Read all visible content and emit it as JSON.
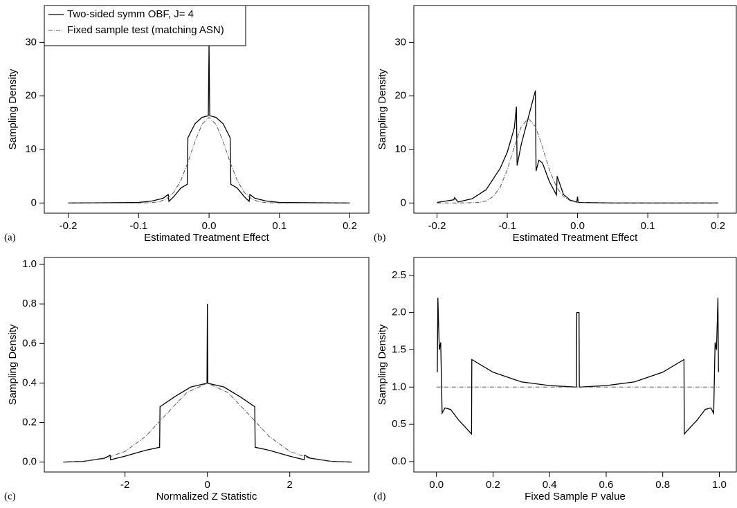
{
  "chart_data": [
    {
      "type": "line",
      "panel_label": "(a)",
      "x_label": "Estimated Treatment Effect",
      "y_label": "Sampling Density",
      "xlim": [
        -0.234,
        0.227
      ],
      "ylim": [
        -1.9,
        36.9
      ],
      "xticks": [
        -0.2,
        -0.1,
        {
          "value": 0,
          "label": "0.0"
        },
        0.1,
        0.2
      ],
      "yticks": [
        0,
        10,
        20,
        30
      ],
      "legend": "upper left",
      "series": [
        {
          "name": "Two-sided symm OBF, J= 4",
          "color": "#000000",
          "line_style": "solid",
          "x": [
            -0.2,
            -0.1,
            -0.08,
            -0.065,
            -0.058,
            -0.057,
            -0.05,
            -0.04,
            -0.031,
            -0.03,
            -0.02,
            -0.01,
            -0.001,
            0,
            0.001,
            0.01,
            0.02,
            0.03,
            0.031,
            0.04,
            0.05,
            0.057,
            0.058,
            0.065,
            0.08,
            0.1,
            0.2
          ],
          "values": [
            0,
            0.1,
            0.4,
            0.9,
            1.6,
            0.3,
            1.2,
            2.8,
            3.5,
            12.2,
            14.8,
            16,
            16.3,
            29.5,
            16.3,
            16,
            14.8,
            12.2,
            3.5,
            2.8,
            1.2,
            0.3,
            1.6,
            0.9,
            0.4,
            0.1,
            0
          ]
        },
        {
          "name": "Fixed sample test (matching ASN)",
          "color": "#555555",
          "line_style": "dashdot",
          "x": [
            -0.2,
            -0.1,
            -0.08,
            -0.07,
            -0.06,
            -0.05,
            -0.04,
            -0.03,
            -0.02,
            -0.01,
            0,
            0.01,
            0.02,
            0.03,
            0.04,
            0.05,
            0.06,
            0.07,
            0.08,
            0.1,
            0.2
          ],
          "values": [
            0,
            0,
            0.07,
            0.27,
            0.8,
            2.0,
            4.2,
            7.6,
            11.5,
            14.7,
            16,
            14.7,
            11.5,
            7.6,
            4.2,
            2.0,
            0.8,
            0.27,
            0.07,
            0,
            0
          ]
        }
      ]
    },
    {
      "type": "line",
      "panel_label": "(b)",
      "x_label": "Estimated Treatment Effect",
      "y_label": "Sampling Density",
      "xlim": [
        -0.233,
        0.226
      ],
      "ylim": [
        -1.9,
        36.9
      ],
      "xticks": [
        -0.2,
        -0.1,
        {
          "value": 0,
          "label": "0.0"
        },
        0.1,
        0.2
      ],
      "yticks": [
        0,
        10,
        20,
        30
      ],
      "series": [
        {
          "color": "#000000",
          "line_style": "solid",
          "x": [
            -0.2,
            -0.176,
            -0.175,
            -0.17,
            -0.15,
            -0.13,
            -0.11,
            -0.1,
            -0.09,
            -0.087,
            -0.086,
            -0.08,
            -0.07,
            -0.06,
            -0.059,
            -0.055,
            -0.05,
            -0.04,
            -0.03,
            -0.029,
            -0.02,
            -0.01,
            -0.001,
            0,
            0.001,
            0.05,
            0.2
          ],
          "values": [
            0.1,
            0.6,
            1.0,
            0.2,
            0.8,
            2.5,
            6.5,
            9.5,
            14,
            18,
            7,
            11,
            16,
            21,
            6,
            8,
            7.5,
            4,
            1.5,
            5,
            1.6,
            0.5,
            0.2,
            1.2,
            0.1,
            0,
            0
          ]
        },
        {
          "color": "#555555",
          "line_style": "dashdot",
          "x": [
            -0.2,
            -0.16,
            -0.14,
            -0.13,
            -0.12,
            -0.11,
            -0.1,
            -0.09,
            -0.08,
            -0.07,
            -0.06,
            -0.05,
            -0.04,
            -0.03,
            -0.02,
            -0.01,
            0,
            0.02,
            0.2
          ],
          "values": [
            0,
            0.02,
            0.1,
            0.4,
            1.2,
            3.0,
            6.2,
            10.5,
            14.3,
            15.8,
            14.3,
            10.5,
            6.2,
            3.0,
            1.2,
            0.4,
            0.1,
            0,
            0
          ]
        }
      ]
    },
    {
      "type": "line",
      "panel_label": "(c)",
      "x_label": "Normalized Z Statistic",
      "y_label": "Sampling Density",
      "xlim": [
        -3.96,
        3.92
      ],
      "ylim": [
        -0.05,
        1.035
      ],
      "xticks": [
        -2,
        0,
        2
      ],
      "yticks": [
        {
          "value": 0,
          "label": "0.0"
        },
        0.2,
        0.4,
        0.6,
        0.8,
        {
          "value": 1,
          "label": "1.0"
        }
      ],
      "series": [
        {
          "color": "#000000",
          "line_style": "solid",
          "x": [
            -3.5,
            -3,
            -2.5,
            -2.36,
            -2.35,
            -2,
            -1.5,
            -1.16,
            -1.15,
            -0.8,
            -0.4,
            -0.01,
            0,
            0.01,
            0.4,
            0.8,
            1.15,
            1.16,
            1.5,
            2,
            2.35,
            2.36,
            2.5,
            3,
            3.5
          ],
          "values": [
            0,
            0.004,
            0.02,
            0.035,
            0.012,
            0.03,
            0.06,
            0.075,
            0.28,
            0.33,
            0.38,
            0.399,
            0.8,
            0.399,
            0.38,
            0.33,
            0.28,
            0.075,
            0.06,
            0.03,
            0.012,
            0.035,
            0.02,
            0.004,
            0
          ]
        },
        {
          "color": "#555555",
          "line_style": "dashdot",
          "x": [
            -3.5,
            -3,
            -2.5,
            -2,
            -1.5,
            -1,
            -0.5,
            0,
            0.5,
            1,
            1.5,
            2,
            2.5,
            3,
            3.5
          ],
          "values": [
            0.0009,
            0.0044,
            0.0175,
            0.054,
            0.13,
            0.242,
            0.352,
            0.399,
            0.352,
            0.242,
            0.13,
            0.054,
            0.0175,
            0.0044,
            0.0009
          ]
        }
      ]
    },
    {
      "type": "line",
      "panel_label": "(d)",
      "x_label": "Fixed Sample P value",
      "y_label": "Sampling Density",
      "xlim": [
        -0.08,
        1.06
      ],
      "ylim": [
        -0.14,
        2.74
      ],
      "xticks": [
        {
          "value": 0,
          "label": "0.0"
        },
        0.2,
        0.4,
        0.6,
        0.8,
        {
          "value": 1,
          "label": "1.0"
        }
      ],
      "yticks": [
        {
          "value": 0,
          "label": "0.0"
        },
        0.5,
        {
          "value": 1,
          "label": "1.0"
        },
        1.5,
        {
          "value": 2,
          "label": "2.0"
        },
        2.5
      ],
      "series": [
        {
          "color": "#000000",
          "line_style": "solid",
          "x": [
            0.003,
            0.005,
            0.01,
            0.015,
            0.02,
            0.03,
            0.05,
            0.08,
            0.1,
            0.124,
            0.125,
            0.2,
            0.3,
            0.4,
            0.495,
            0.496,
            0.504,
            0.505,
            0.6,
            0.7,
            0.8,
            0.875,
            0.876,
            0.9,
            0.92,
            0.95,
            0.97,
            0.98,
            0.985,
            0.99,
            0.995,
            0.997
          ],
          "values": [
            1.2,
            2.2,
            1.5,
            1.6,
            0.65,
            0.72,
            0.7,
            0.55,
            0.47,
            0.37,
            1.37,
            1.2,
            1.07,
            1.02,
            1.0,
            2.0,
            2.0,
            1.0,
            1.02,
            1.07,
            1.2,
            1.37,
            0.37,
            0.47,
            0.55,
            0.7,
            0.72,
            0.65,
            1.6,
            1.5,
            2.2,
            1.2
          ]
        },
        {
          "color": "#555555",
          "line_style": "dashdot",
          "x": [
            0,
            1
          ],
          "values": [
            1,
            1
          ]
        }
      ]
    }
  ]
}
